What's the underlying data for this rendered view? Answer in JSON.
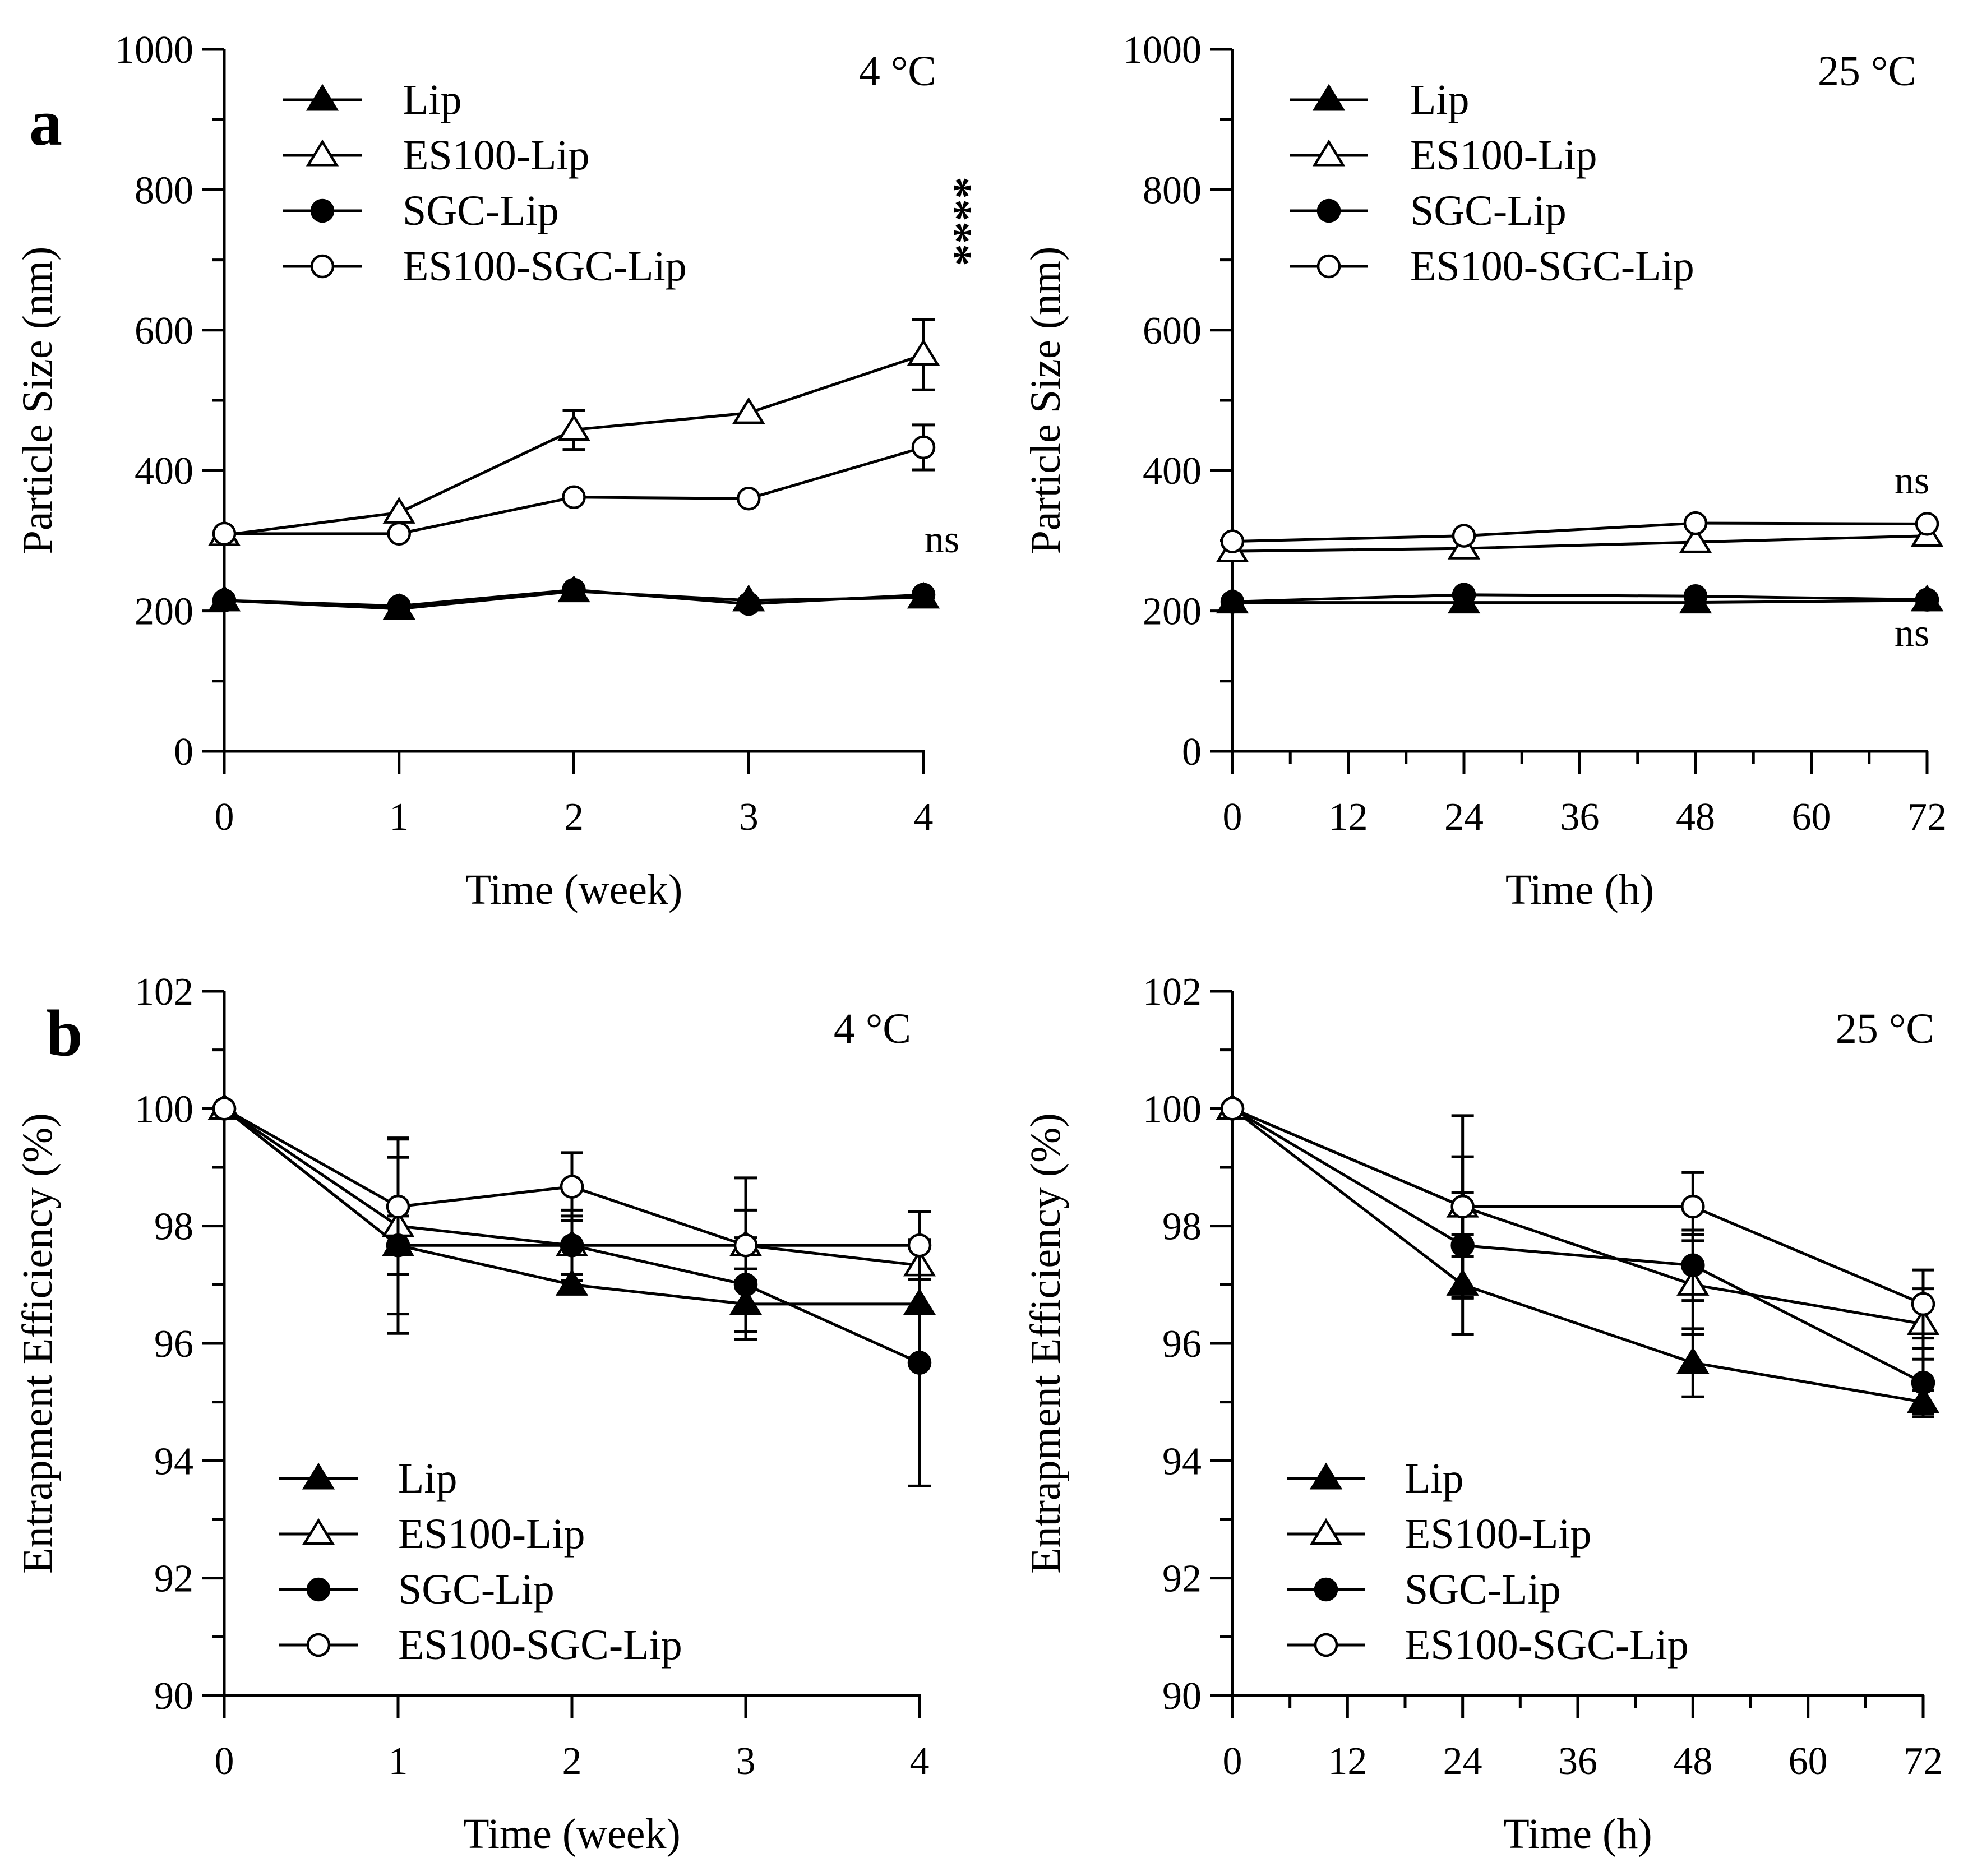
{
  "chart_data": [
    {
      "panel_label": "a",
      "type": "line",
      "condition": "4 °C",
      "xlabel": "Time (week)",
      "ylabel": "Particle Size (nm)",
      "x": [
        0,
        1,
        2,
        3,
        4
      ],
      "xticks": [
        "0",
        "1",
        "2",
        "3",
        "4"
      ],
      "xminor": [],
      "xlim": [
        0,
        4
      ],
      "ylim": [
        0,
        1000
      ],
      "yticks": [
        0,
        200,
        400,
        600,
        800,
        1000
      ],
      "yminor": [
        100,
        300,
        500,
        700,
        900
      ],
      "legend_position": "top-left",
      "series": [
        {
          "name": "Lip",
          "marker": "triangle-filled",
          "values": [
            215,
            203,
            228,
            215,
            219
          ],
          "errors": [
            0,
            0,
            0,
            0,
            0
          ]
        },
        {
          "name": "ES100-Lip",
          "marker": "triangle-open",
          "values": [
            308,
            340,
            458,
            482,
            565
          ],
          "errors": [
            0,
            0,
            28,
            0,
            50
          ]
        },
        {
          "name": "SGC-Lip",
          "marker": "circle-filled",
          "values": [
            215,
            207,
            230,
            210,
            223
          ],
          "errors": [
            0,
            0,
            0,
            0,
            0
          ]
        },
        {
          "name": "ES100-SGC-Lip",
          "marker": "circle-open",
          "values": [
            310,
            310,
            362,
            360,
            433
          ],
          "errors": [
            0,
            0,
            0,
            0,
            32
          ]
        }
      ],
      "annotations": [
        {
          "text": "****",
          "x": 4,
          "y": 740,
          "vertical": true
        },
        {
          "text": "ns",
          "x": 4,
          "y": 300
        }
      ]
    },
    {
      "panel_label": "",
      "type": "line",
      "condition": "25 °C",
      "xlabel": "Time (h)",
      "ylabel": "Particle Size (nm)",
      "x": [
        0,
        24,
        48,
        72
      ],
      "xticks": [
        "0",
        "12",
        "24",
        "36",
        "48",
        "60",
        "72"
      ],
      "xminor": [
        6,
        18,
        30,
        42,
        54,
        66
      ],
      "xlim": [
        0,
        72
      ],
      "ylim": [
        0,
        1000
      ],
      "yticks": [
        0,
        200,
        400,
        600,
        800,
        1000
      ],
      "yminor": [
        100,
        300,
        500,
        700,
        900
      ],
      "legend_position": "top-left",
      "series": [
        {
          "name": "Lip",
          "marker": "triangle-filled",
          "values": [
            212,
            212,
            212,
            215
          ],
          "errors": [
            0,
            0,
            0,
            0
          ]
        },
        {
          "name": "ES100-Lip",
          "marker": "triangle-open",
          "values": [
            285,
            289,
            298,
            307
          ],
          "errors": [
            0,
            0,
            0,
            0
          ]
        },
        {
          "name": "SGC-Lip",
          "marker": "circle-filled",
          "values": [
            213,
            223,
            221,
            216
          ],
          "errors": [
            0,
            0,
            0,
            0
          ]
        },
        {
          "name": "ES100-SGC-Lip",
          "marker": "circle-open",
          "values": [
            299,
            307,
            325,
            324
          ],
          "errors": [
            0,
            0,
            0,
            0
          ]
        }
      ],
      "annotations": [
        {
          "text": "ns",
          "x": 72,
          "y": 385
        },
        {
          "text": "ns",
          "x": 72,
          "y": 160
        }
      ]
    },
    {
      "panel_label": "b",
      "type": "line",
      "condition": "4 °C",
      "xlabel": "Time (week)",
      "ylabel": "Entrapment Efficiency (%)",
      "x": [
        0,
        1,
        2,
        3,
        4
      ],
      "xticks": [
        "0",
        "1",
        "2",
        "3",
        "4"
      ],
      "xminor": [],
      "xlim": [
        0,
        4
      ],
      "ylim": [
        90,
        102
      ],
      "yticks": [
        90,
        92,
        94,
        96,
        98,
        100,
        102
      ],
      "yminor": [
        91,
        93,
        95,
        97,
        99,
        101
      ],
      "legend_position": "bottom-left",
      "series": [
        {
          "name": "Lip",
          "marker": "triangle-filled",
          "values": [
            100,
            97.67,
            97.0,
            96.67,
            96.67
          ],
          "errors": [
            0,
            0.5,
            0,
            0.6,
            0
          ]
        },
        {
          "name": "ES100-Lip",
          "marker": "triangle-open",
          "values": [
            100,
            98.0,
            97.67,
            97.67,
            97.33
          ],
          "errors": [
            0,
            1.5,
            0.5,
            0.6,
            0
          ]
        },
        {
          "name": "SGC-Lip",
          "marker": "circle-filled",
          "values": [
            100,
            97.67,
            97.67,
            97.0,
            95.67
          ],
          "errors": [
            0,
            1.5,
            0.6,
            0.8,
            2.1
          ]
        },
        {
          "name": "ES100-SGC-Lip",
          "marker": "circle-open",
          "values": [
            100,
            98.33,
            98.67,
            97.67,
            97.67
          ],
          "errors": [
            0,
            1.15,
            0.58,
            1.15,
            0.58
          ]
        }
      ],
      "annotations": []
    },
    {
      "panel_label": "",
      "type": "line",
      "condition": "25 °C",
      "xlabel": "Time (h)",
      "ylabel": "Entrapment Efficiency (%)",
      "x": [
        0,
        24,
        48,
        72
      ],
      "xticks": [
        "0",
        "12",
        "24",
        "36",
        "48",
        "60",
        "72"
      ],
      "xminor": [
        6,
        18,
        30,
        42,
        54,
        66
      ],
      "xlim": [
        0,
        72
      ],
      "ylim": [
        90,
        102
      ],
      "yticks": [
        90,
        92,
        94,
        96,
        98,
        100,
        102
      ],
      "yminor": [
        91,
        93,
        95,
        97,
        99,
        101
      ],
      "legend_position": "bottom-left",
      "series": [
        {
          "name": "Lip",
          "marker": "triangle-filled",
          "values": [
            100,
            97.0,
            95.67,
            95.0
          ],
          "errors": [
            0,
            0.85,
            0.58,
            0.2
          ]
        },
        {
          "name": "ES100-Lip",
          "marker": "triangle-open",
          "values": [
            100,
            98.33,
            97.0,
            96.33
          ],
          "errors": [
            0,
            0.85,
            0.85,
            0.6
          ]
        },
        {
          "name": "SGC-Lip",
          "marker": "circle-filled",
          "values": [
            100,
            97.67,
            97.33,
            95.33
          ],
          "errors": [
            0,
            0.9,
            0.6,
            0.58
          ]
        },
        {
          "name": "ES100-SGC-Lip",
          "marker": "circle-open",
          "values": [
            100,
            98.33,
            98.33,
            96.67
          ],
          "errors": [
            0,
            1.55,
            0.58,
            0.58
          ]
        }
      ],
      "annotations": []
    }
  ]
}
